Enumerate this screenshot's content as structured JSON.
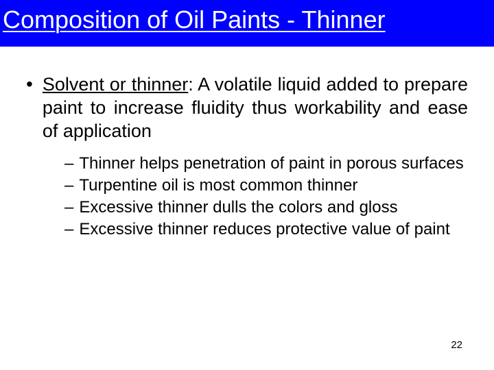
{
  "title": "Composition of Oil Paints - Thinner",
  "main": {
    "label_underlined": "Solvent or thinner",
    "label_rest": ": A volatile liquid added to prepare paint to increase fluidity thus workability and ease of application"
  },
  "subs": [
    "Thinner helps penetration of paint in porous surfaces",
    "Turpentine oil is most common thinner",
    "Excessive thinner dulls the colors and gloss",
    "Excessive thinner reduces protective value of paint"
  ],
  "page_number": "22",
  "colors": {
    "title_bg": "#0000ff",
    "title_fg": "#ffffff",
    "body_bg": "#ffffff",
    "text": "#000000"
  },
  "typography": {
    "title_fontsize": 36,
    "main_fontsize": 27,
    "sub_fontsize": 24,
    "pagenum_fontsize": 15
  }
}
